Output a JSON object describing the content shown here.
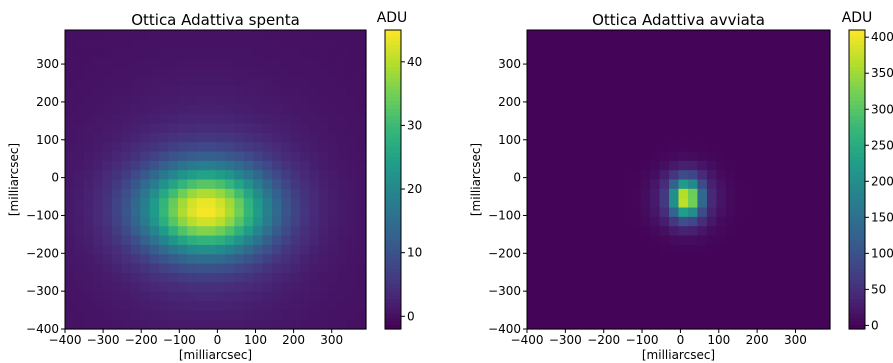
{
  "chart_data": [
    {
      "type": "heatmap",
      "title": "Ottica Adattiva spenta",
      "xlabel": "[milliarcsec]",
      "ylabel": "[milliarcsec]",
      "xlim": [
        -400,
        390
      ],
      "ylim": [
        -400,
        390
      ],
      "xticks": [
        -400,
        -300,
        -200,
        -100,
        0,
        100,
        200,
        300
      ],
      "yticks": [
        -400,
        -300,
        -200,
        -100,
        0,
        100,
        200,
        300
      ],
      "xtick_labels": [
        "−400",
        "−300",
        "−200",
        "−100",
        "0",
        "100",
        "200",
        "300"
      ],
      "ytick_labels": [
        "−400",
        "−300",
        "−200",
        "−100",
        "0",
        "100",
        "200",
        "300"
      ],
      "colorbar": {
        "title": "ADU",
        "range": [
          -2,
          45
        ],
        "ticks": [
          0,
          10,
          20,
          30,
          40
        ],
        "tick_labels": [
          "0",
          "10",
          "20",
          "30",
          "40"
        ],
        "colormap": "viridis"
      },
      "grid": false,
      "peak": {
        "x": -30,
        "y": -85,
        "value": 44
      },
      "background_value": 0,
      "source": {
        "amplitude": 44,
        "sigma_x": 115,
        "sigma_y": 80,
        "halo_sigma": 190,
        "halo_fraction": 0.12
      }
    },
    {
      "type": "heatmap",
      "title": "Ottica Adattiva avviata",
      "xlabel": "[milliarcsec]",
      "ylabel": "[milliarcsec]",
      "xlim": [
        -400,
        390
      ],
      "ylim": [
        -400,
        390
      ],
      "xticks": [
        -400,
        -300,
        -200,
        -100,
        0,
        100,
        200,
        300
      ],
      "yticks": [
        -400,
        -300,
        -200,
        -100,
        0,
        100,
        200,
        300
      ],
      "xtick_labels": [
        "−400",
        "−300",
        "−200",
        "−100",
        "0",
        "100",
        "200",
        "300"
      ],
      "ytick_labels": [
        "−400",
        "−300",
        "−200",
        "−100",
        "0",
        "100",
        "200",
        "300"
      ],
      "colorbar": {
        "title": "ADU",
        "range": [
          -5,
          410
        ],
        "ticks": [
          0,
          50,
          100,
          150,
          200,
          250,
          300,
          350,
          400
        ],
        "tick_labels": [
          "0",
          "50",
          "100",
          "150",
          "200",
          "250",
          "300",
          "350",
          "400"
        ],
        "colormap": "viridis"
      },
      "grid": false,
      "peak": {
        "x": 15,
        "y": -55,
        "value": 405
      },
      "background_value": 0,
      "source": {
        "amplitude": 405,
        "sigma_x": 28,
        "sigma_y": 34,
        "ring_radius": 75,
        "ring_fraction": 0.05
      }
    }
  ]
}
